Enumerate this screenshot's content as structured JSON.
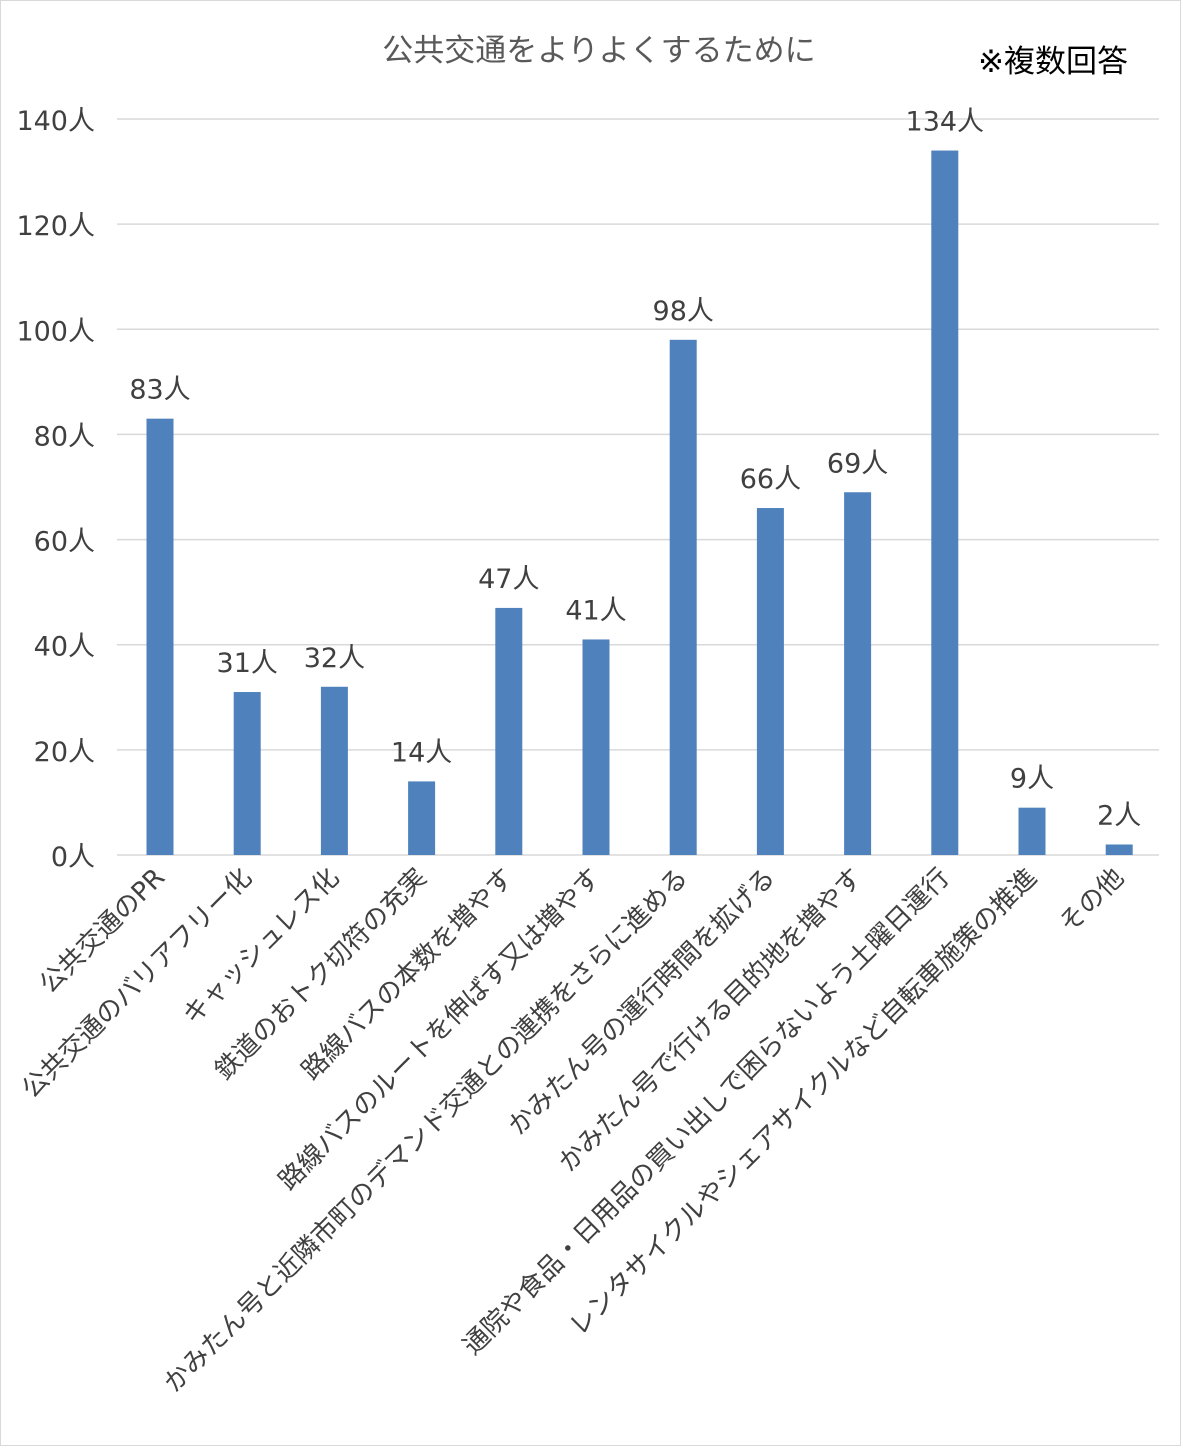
{
  "note": "※複数回答",
  "colors": {
    "bar": "#4f81bd",
    "grid": "#d9d9d9",
    "text": "#404040"
  },
  "chart_data": {
    "type": "bar",
    "title": "公共交通をよりよくするために",
    "xlabel": "",
    "ylabel": "",
    "ylim": [
      0,
      140
    ],
    "yticks": [
      0,
      20,
      40,
      60,
      80,
      100,
      120,
      140
    ],
    "ytick_labels": [
      "0人",
      "20人",
      "40人",
      "60人",
      "80人",
      "100人",
      "120人",
      "140人"
    ],
    "grid": true,
    "legend": "none",
    "categories": [
      "公共交通のPR",
      "公共交通のバリアフリー化",
      "キャッシュレス化",
      "鉄道のおトク切符の充実",
      "路線バスの本数を増やす",
      "路線バスのルートを伸ばす又は増やす",
      "かみたん号と近隣市町のデマンド交通との連携をさらに進める",
      "かみたん号の運行時間を拡げる",
      "かみたん号で行ける目的地を増やす",
      "通院や食品・日用品の買い出しで困らないよう土曜日運行",
      "レンタサイクルやシェアサイクルなど自転車施策の推進",
      "その他"
    ],
    "values": [
      83,
      31,
      32,
      14,
      47,
      41,
      98,
      66,
      69,
      134,
      9,
      2
    ],
    "data_labels": [
      "83人",
      "31人",
      "32人",
      "14人",
      "47人",
      "41人",
      "98人",
      "66人",
      "69人",
      "134人",
      "9人",
      "2人"
    ]
  }
}
